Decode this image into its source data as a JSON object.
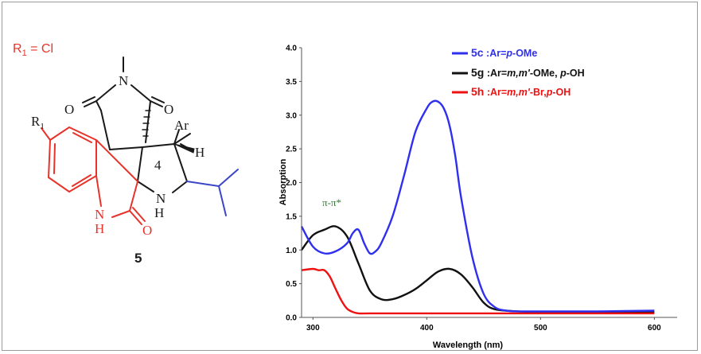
{
  "substituent": {
    "label_main": "R",
    "label_sub": "1",
    "label_rest": " = Cl",
    "color": "#e8332a"
  },
  "molecule": {
    "compound_number": "5",
    "atoms": {
      "O_left": "O",
      "N_top": "N",
      "O_right": "O",
      "Ar": "Ar",
      "H_chiral": "H",
      "C4": "4",
      "R": "R",
      "R_sub": "1",
      "N_pyr": "N",
      "H_pyr": "H",
      "N_ind": "N",
      "H_ind": "H",
      "O_ind": "O"
    },
    "colors": {
      "core": "#1a1a1a",
      "oxindole": "#e8332a",
      "isopropyl": "#3b45c8"
    }
  },
  "chart_data": {
    "type": "line",
    "xlabel": "Wavelength (nm)",
    "ylabel": "Absorption",
    "xlim": [
      290,
      620
    ],
    "ylim": [
      0,
      4.0
    ],
    "x_ticks": [
      "300",
      "400",
      "500",
      "600"
    ],
    "y_ticks": [
      "0.0",
      "0.5",
      "1.0",
      "1.5",
      "2.0",
      "2.5",
      "3.0",
      "3.5",
      "4.0"
    ],
    "x_tick_values": [
      300,
      400,
      500,
      600
    ],
    "y_tick_values": [
      0,
      0.5,
      1.0,
      1.5,
      2.0,
      2.5,
      3.0,
      3.5,
      4.0
    ],
    "annotation": "π-π*",
    "legend_position": "top-right",
    "series": [
      {
        "name_parts": [
          "5c",
          " :Ar=",
          "p",
          "-OMe"
        ],
        "color": "#2f2ff0",
        "x": [
          290,
          300,
          310,
          320,
          330,
          335,
          340,
          345,
          350,
          355,
          360,
          370,
          380,
          390,
          400,
          405,
          410,
          415,
          420,
          425,
          430,
          440,
          450,
          460,
          470,
          480,
          500,
          550,
          600
        ],
        "y": [
          1.35,
          1.05,
          0.95,
          0.98,
          1.1,
          1.25,
          1.3,
          1.1,
          0.95,
          0.98,
          1.1,
          1.5,
          2.1,
          2.75,
          3.1,
          3.2,
          3.2,
          3.1,
          2.85,
          2.4,
          1.8,
          0.9,
          0.35,
          0.15,
          0.1,
          0.09,
          0.09,
          0.09,
          0.1
        ]
      },
      {
        "name_parts": [
          "5g",
          " :Ar=",
          "m,m'",
          "-OMe, ",
          "p",
          "-OH"
        ],
        "color": "#111111",
        "x": [
          290,
          300,
          310,
          320,
          330,
          340,
          350,
          360,
          370,
          380,
          390,
          400,
          410,
          420,
          430,
          440,
          450,
          460,
          480,
          500,
          550,
          600
        ],
        "y": [
          1.0,
          1.22,
          1.3,
          1.35,
          1.2,
          0.8,
          0.4,
          0.27,
          0.27,
          0.33,
          0.42,
          0.55,
          0.68,
          0.72,
          0.64,
          0.45,
          0.22,
          0.12,
          0.09,
          0.08,
          0.08,
          0.08
        ]
      },
      {
        "name_parts": [
          "5h",
          " :Ar=",
          "m,m'",
          "-Br,",
          "p",
          "-OH"
        ],
        "color": "#ee1111",
        "x": [
          290,
          300,
          305,
          310,
          315,
          320,
          325,
          330,
          335,
          340,
          350,
          400,
          500,
          600
        ],
        "y": [
          0.7,
          0.72,
          0.7,
          0.7,
          0.6,
          0.42,
          0.25,
          0.13,
          0.08,
          0.06,
          0.06,
          0.06,
          0.06,
          0.06
        ]
      }
    ]
  }
}
